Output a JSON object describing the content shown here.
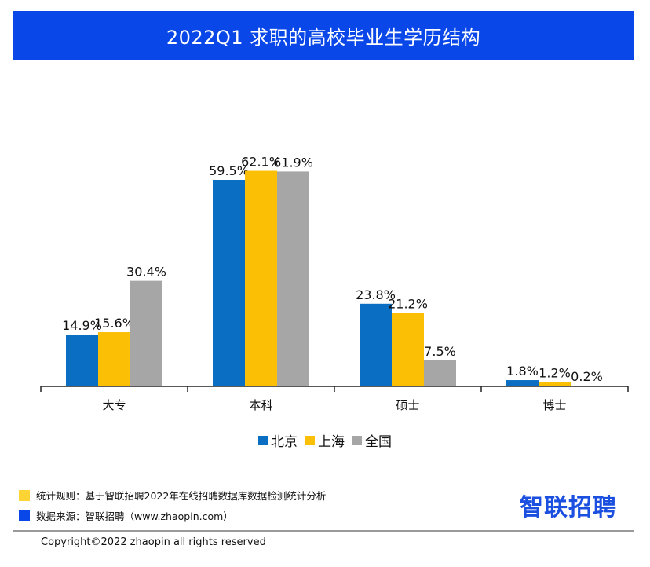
{
  "header": {
    "title": "2022Q1 求职的高校毕业生学历结构"
  },
  "colors": {
    "title_bg": "#0a47e8",
    "beijing": "#0a6fc2",
    "shanghai": "#fbbf05",
    "national": "#a6a6a6",
    "rule_marker": "#fcd535",
    "source_marker": "#0a47e8",
    "logo": "#1a4fe0"
  },
  "chart_data": {
    "type": "bar",
    "title": "2022Q1 求职的高校毕业生学历结构",
    "categories": [
      "大专",
      "本科",
      "硕士",
      "博士"
    ],
    "series": [
      {
        "name": "北京",
        "values": [
          14.9,
          59.5,
          23.8,
          1.8
        ],
        "labels": [
          "14.9%",
          "59.5%",
          "23.8%",
          "1.8%"
        ]
      },
      {
        "name": "上海",
        "values": [
          15.6,
          62.1,
          21.2,
          1.2
        ],
        "labels": [
          "15.6%",
          "62.1%",
          "21.2%",
          "1.2%"
        ]
      },
      {
        "name": "全国",
        "values": [
          30.4,
          61.9,
          7.5,
          0.2
        ],
        "labels": [
          "30.4%",
          "61.9%",
          "7.5%",
          "0.2%"
        ]
      }
    ],
    "unit": "%",
    "ylim": [
      0,
      65
    ],
    "xlabel": "",
    "ylabel": "",
    "grid": false,
    "legend_position": "bottom-center"
  },
  "legend": {
    "items": [
      "北京",
      "上海",
      "全国"
    ]
  },
  "footer": {
    "rule_text": "统计规则：基于智联招聘2022年在线招聘数据库数据检测统计分析",
    "source_text": "数据来源：智联招聘（www.zhaopin.com）",
    "logo_text": "智联招聘",
    "copyright": "Copyright©2022 zhaopin all rights reserved"
  }
}
